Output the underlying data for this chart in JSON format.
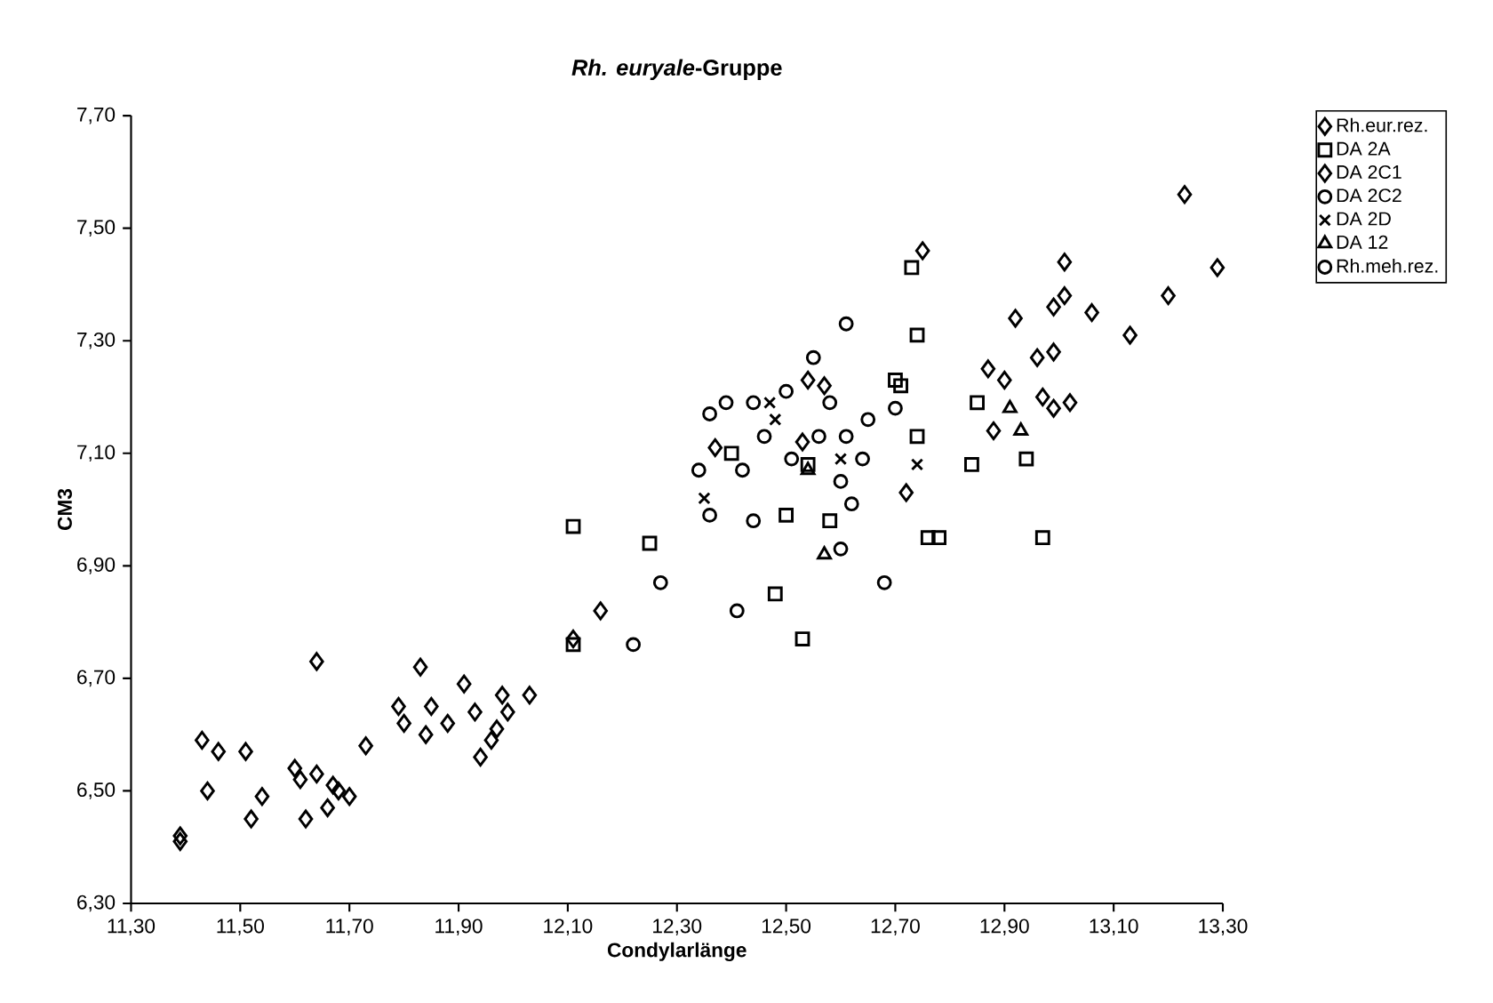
{
  "chart_data": {
    "type": "scatter",
    "title": "*Rh. euryale*-Gruppe",
    "xlabel": "Condylarlänge",
    "ylabel": "CM3",
    "xlim": [
      11.3,
      13.3
    ],
    "ylim": [
      6.3,
      7.7
    ],
    "xticks": [
      {
        "value": 11.3,
        "label": "11,30"
      },
      {
        "value": 11.5,
        "label": "11,50"
      },
      {
        "value": 11.7,
        "label": "11,70"
      },
      {
        "value": 11.9,
        "label": "11,90"
      },
      {
        "value": 12.1,
        "label": "12,10"
      },
      {
        "value": 12.3,
        "label": "12,30"
      },
      {
        "value": 12.5,
        "label": "12,50"
      },
      {
        "value": 12.7,
        "label": "12,70"
      },
      {
        "value": 12.9,
        "label": "12,90"
      },
      {
        "value": 13.1,
        "label": "13,10"
      },
      {
        "value": 13.3,
        "label": "13,30"
      }
    ],
    "yticks": [
      {
        "value": 6.3,
        "label": "6,30"
      },
      {
        "value": 6.5,
        "label": "6,50"
      },
      {
        "value": 6.7,
        "label": "6,70"
      },
      {
        "value": 6.9,
        "label": "6,90"
      },
      {
        "value": 7.1,
        "label": "7,10"
      },
      {
        "value": 7.3,
        "label": "7,30"
      },
      {
        "value": 7.5,
        "label": "7,50"
      },
      {
        "value": 7.7,
        "label": "7,70"
      }
    ],
    "grid": false,
    "legend": "top right",
    "series": [
      {
        "name": "Rh.eur.rez.",
        "color": "#000000",
        "marker": "diamond",
        "x": [
          11.39,
          11.39,
          11.43,
          11.46,
          11.44,
          11.51,
          11.52,
          11.54,
          11.6,
          11.61,
          11.62,
          11.64,
          11.64,
          11.66,
          11.67,
          11.68,
          11.7,
          11.73,
          11.79,
          11.8,
          11.83,
          11.85,
          11.84,
          11.88,
          11.91,
          11.93,
          11.94,
          11.96,
          11.97,
          11.98,
          11.99,
          12.03,
          12.11,
          12.16
        ],
        "values": [
          6.42,
          6.41,
          6.59,
          6.57,
          6.5,
          6.57,
          6.45,
          6.49,
          6.54,
          6.52,
          6.45,
          6.73,
          6.53,
          6.47,
          6.51,
          6.5,
          6.49,
          6.58,
          6.65,
          6.62,
          6.72,
          6.65,
          6.6,
          6.62,
          6.69,
          6.64,
          6.56,
          6.59,
          6.61,
          6.67,
          6.64,
          6.67,
          6.77,
          6.82
        ]
      },
      {
        "name": "DA 2A",
        "color": "#000000",
        "marker": "square",
        "x": [
          12.11,
          12.11,
          12.25,
          12.4,
          12.5,
          12.58,
          12.48,
          12.53,
          12.54,
          12.7,
          12.71,
          12.74,
          12.73,
          12.74,
          12.76,
          12.78,
          12.84,
          12.85,
          12.94,
          12.97
        ],
        "values": [
          6.97,
          6.76,
          6.94,
          7.1,
          6.99,
          6.98,
          6.85,
          6.77,
          7.08,
          7.23,
          7.22,
          7.31,
          7.43,
          7.13,
          6.95,
          6.95,
          7.08,
          7.19,
          7.09,
          6.95
        ]
      },
      {
        "name": "DA 2C1",
        "color": "#000000",
        "marker": "diamond",
        "x": [
          12.75,
          12.54,
          12.57,
          12.37,
          12.53,
          12.72,
          12.87,
          13.23,
          13.29,
          13.01,
          13.01,
          12.99,
          12.92,
          13.06,
          13.2,
          13.13,
          12.96,
          12.99,
          12.9,
          12.97,
          12.99,
          13.02,
          12.88
        ],
        "values": [
          7.46,
          7.23,
          7.22,
          7.11,
          7.12,
          7.03,
          7.25,
          7.56,
          7.43,
          7.44,
          7.38,
          7.36,
          7.34,
          7.35,
          7.38,
          7.31,
          7.27,
          7.28,
          7.23,
          7.2,
          7.18,
          7.19,
          7.14
        ]
      },
      {
        "name": "DA 2C2",
        "color": "#000000",
        "marker": "circle",
        "x": [
          12.27,
          12.41,
          12.22,
          12.44,
          12.62
        ],
        "values": [
          6.87,
          6.82,
          6.76,
          6.98,
          7.01
        ]
      },
      {
        "name": "DA 2D",
        "color": "#000000",
        "marker": "cross",
        "x": [
          12.35,
          12.6,
          12.74,
          12.48,
          12.47
        ],
        "values": [
          7.02,
          7.09,
          7.08,
          7.16,
          7.19
        ]
      },
      {
        "name": "DA 12",
        "color": "#000000",
        "marker": "triangle",
        "x": [
          12.54,
          12.57,
          12.91,
          12.93
        ],
        "values": [
          7.07,
          6.92,
          7.18,
          7.14
        ]
      },
      {
        "name": "Rh.meh.rez.",
        "color": "#000000",
        "marker": "circle",
        "x": [
          12.61,
          12.55,
          12.36,
          12.39,
          12.44,
          12.5,
          12.46,
          12.58,
          12.65,
          12.7,
          12.56,
          12.61,
          12.34,
          12.42,
          12.51,
          12.64,
          12.6,
          12.36,
          12.6,
          12.68
        ],
        "values": [
          7.33,
          7.27,
          7.17,
          7.19,
          7.19,
          7.21,
          7.13,
          7.19,
          7.16,
          7.18,
          7.13,
          7.13,
          7.07,
          7.07,
          7.09,
          7.09,
          7.05,
          6.99,
          6.93,
          6.87
        ]
      }
    ]
  }
}
